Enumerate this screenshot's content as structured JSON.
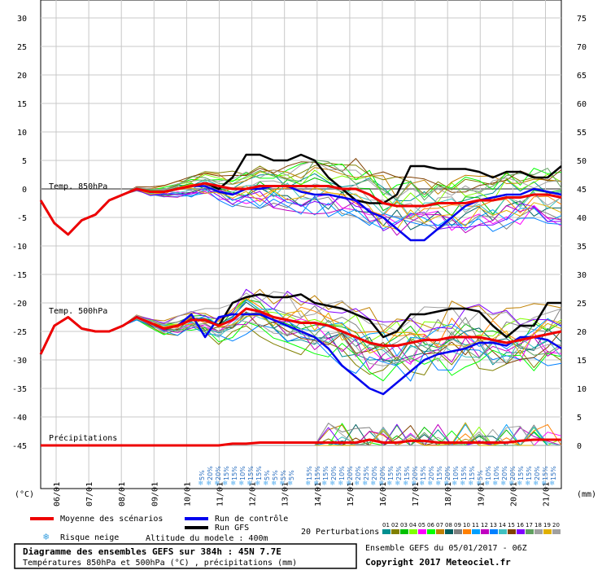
{
  "chart_data": {
    "type": "line",
    "title": "Diagramme des ensembles GEFS sur 384h : 45N 7.7E",
    "subtitle": "Températures 850hPa et 500hPa (°C) , précipitations (mm)",
    "x_ticks": [
      "06/01",
      "07/01",
      "08/01",
      "09/01",
      "10/01",
      "11/01",
      "12/01",
      "13/01",
      "14/01",
      "15/01",
      "16/01",
      "17/01",
      "18/01",
      "19/01",
      "20/01",
      "21/01"
    ],
    "left_axis": {
      "unit": "(°C)",
      "ticks": [
        30,
        25,
        20,
        15,
        10,
        5,
        0,
        -5,
        -10,
        -15,
        -20,
        -25,
        -30,
        -35,
        -40,
        -45
      ]
    },
    "right_axis": {
      "unit": "(mm)",
      "ticks": [
        75,
        70,
        65,
        60,
        55,
        50,
        45,
        40,
        35,
        30,
        25,
        20,
        15,
        10,
        5,
        0
      ]
    },
    "grid": true,
    "panel_labels": {
      "t850": "Temp. 850hPa",
      "t500": "Temp. 500hPa",
      "precip": "Précipitations"
    },
    "snow_risk_label": "Risque neige",
    "snow_risk": [
      "5%",
      "20%",
      "20%",
      "15%",
      "15%",
      "10%",
      "15%",
      "15%",
      "5%",
      "5%",
      "5%",
      "5%",
      "15%",
      "15%",
      "15%",
      "20%",
      "10%",
      "20%",
      "20%",
      "25%",
      "20%",
      "20%",
      "15%",
      "25%",
      "15%",
      "20%",
      "15%",
      "20%",
      "15%",
      "20%",
      "10%",
      "15%",
      "15%",
      "5%",
      "10%",
      "10%",
      "20%",
      "20%",
      "15%",
      "15%",
      "20%",
      "15%",
      "15%"
    ],
    "series": [
      {
        "name": "Moyenne des scénarios",
        "color": "#ee0000",
        "t850": [
          -2,
          -6,
          -8,
          -5.5,
          -4.5,
          -2,
          -1,
          0,
          -0.5,
          -0.5,
          0,
          0.5,
          1,
          0.5,
          0,
          0,
          0.5,
          0.5,
          0.5,
          0.5,
          0.5,
          0.5,
          0,
          0,
          -1,
          -2.5,
          -3,
          -3,
          -3,
          -2.5,
          -2.5,
          -2.5,
          -2,
          -2,
          -1.5,
          -1.5,
          -1,
          -1,
          -1.5
        ],
        "t500": [
          -29,
          -24,
          -22.5,
          -24.5,
          -25,
          -25,
          -24,
          -22.5,
          -23.5,
          -24.5,
          -24,
          -23,
          -23,
          -24,
          -23,
          -21,
          -21.5,
          -22.5,
          -23,
          -23.5,
          -23.5,
          -24,
          -25,
          -26,
          -27,
          -27.5,
          -27.5,
          -27,
          -26.5,
          -26.5,
          -26,
          -26,
          -26,
          -26.5,
          -27,
          -26.5,
          -26,
          -25.5,
          -25
        ],
        "precip": [
          0,
          0,
          0,
          0,
          0,
          0,
          0,
          0,
          0,
          0,
          0,
          0,
          0,
          0,
          0.3,
          0.3,
          0.5,
          0.5,
          0.5,
          0.5,
          0.5,
          0.5,
          0.5,
          0.5,
          1,
          0.5,
          0.5,
          0.8,
          0.8,
          0.5,
          0.5,
          0.5,
          0.5,
          0.5,
          0.5,
          0.8,
          1,
          1,
          1
        ]
      },
      {
        "name": "Run de contrôle",
        "color": "#0000ee",
        "t850": [
          -2,
          -6,
          -8,
          -5.5,
          -4.5,
          -2,
          -1,
          0,
          -0.5,
          -0.5,
          0,
          0.5,
          0.5,
          -0.5,
          -1,
          0,
          0,
          0.5,
          0.5,
          -0.5,
          -1,
          -1,
          -1.5,
          -2,
          -4,
          -5,
          -7,
          -9,
          -9,
          -7,
          -5,
          -3,
          -2,
          -1.5,
          -1,
          -1,
          0,
          -0.5,
          -1
        ],
        "t500": [
          -29,
          -24,
          -22.5,
          -24.5,
          -25,
          -25,
          -24,
          -22.5,
          -23.5,
          -24.5,
          -24,
          -22,
          -26,
          -22.5,
          -22,
          -22,
          -22,
          -23,
          -24,
          -25,
          -26,
          -28,
          -31,
          -33,
          -35,
          -36,
          -34,
          -32,
          -30,
          -29,
          -28.5,
          -28,
          -27,
          -27,
          -27.5,
          -26,
          -26,
          -26.5,
          -28
        ]
      },
      {
        "name": "Run GFS",
        "color": "#000000",
        "t850": [
          -2,
          -6,
          -8,
          -5.5,
          -4.5,
          -2,
          -1,
          0,
          -0.5,
          -0.5,
          0,
          0.5,
          1,
          0,
          2,
          6,
          6,
          5,
          5,
          6,
          5,
          2,
          0,
          -2,
          -2.5,
          -2.5,
          -1,
          4,
          4,
          3.5,
          3.5,
          3.5,
          3,
          2,
          3,
          3,
          2,
          2,
          4
        ],
        "t500": [
          -29,
          -24,
          -22.5,
          -24.5,
          -25,
          -25,
          -24,
          -22.5,
          -23.5,
          -24.5,
          -24,
          -23,
          -23,
          -24,
          -20,
          -19,
          -18.5,
          -19,
          -19,
          -18.5,
          -20,
          -20.5,
          -21,
          -22,
          -23,
          -26,
          -25,
          -22,
          -22,
          -21.5,
          -21,
          -21,
          -21.5,
          -24,
          -26,
          -24,
          -24,
          -20,
          -20
        ]
      }
    ],
    "legend": {
      "mean": "Moyenne des scénarios",
      "control": "Run de contrôle",
      "gfs": "Run GFS",
      "perturbations": "20 Perturbations",
      "pert_ids": [
        "01",
        "02",
        "03",
        "04",
        "05",
        "06",
        "07",
        "08",
        "09",
        "10",
        "11",
        "12",
        "13",
        "14",
        "15",
        "16",
        "17",
        "18",
        "19",
        "20"
      ],
      "pert_colors": [
        "#009090",
        "#808000",
        "#00c000",
        "#80ff00",
        "#ff00ff",
        "#00ff00",
        "#c08000",
        "#006060",
        "#808080",
        "#ff8000",
        "#00a0ff",
        "#c000c0",
        "#0080ff",
        "#40c0c0",
        "#804000",
        "#8000ff",
        "#60a060",
        "#a0a0a0",
        "#e0b000",
        "#a0a0a0"
      ]
    },
    "altitude": "Altitude du modele : 400m",
    "run_info": "Ensemble GEFS du 05/01/2017 - 06Z",
    "copyright": "Copyright 2017 Meteociel.fr"
  }
}
